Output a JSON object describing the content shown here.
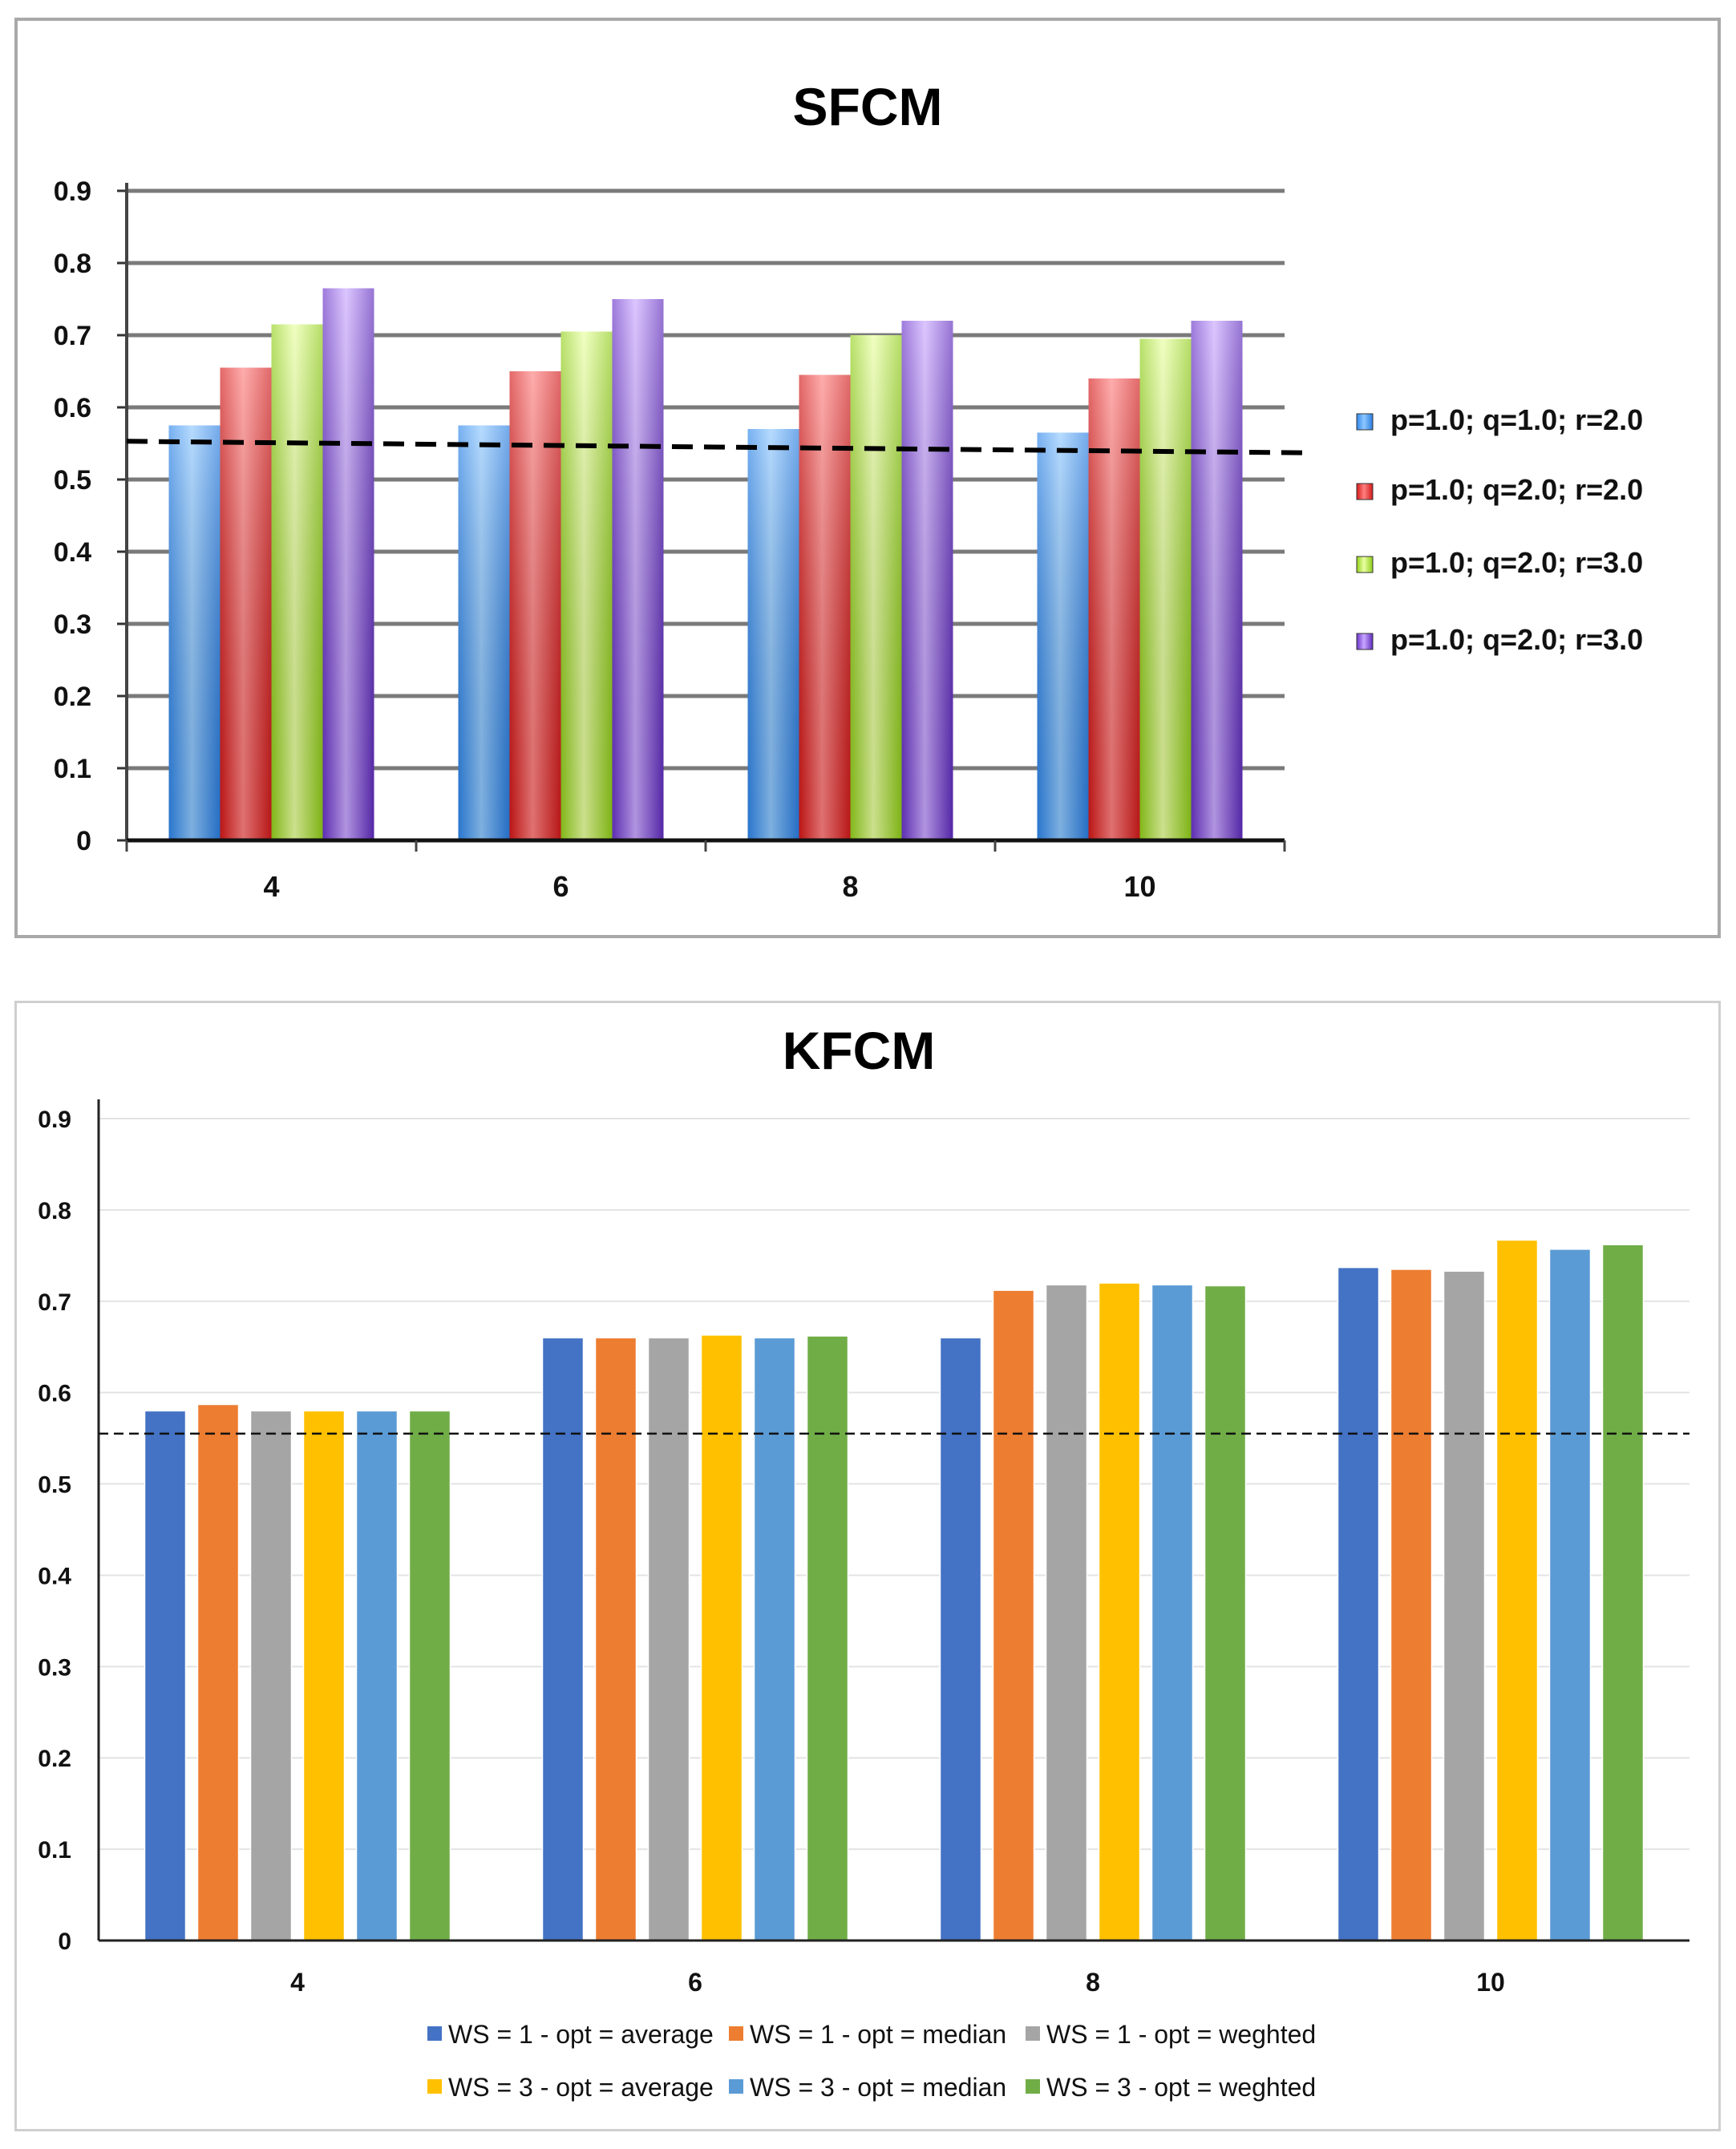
{
  "chart_data": [
    {
      "id": "sfcm",
      "type": "bar",
      "title": "SFCM",
      "xlabel": "",
      "ylabel": "",
      "categories": [
        "4",
        "6",
        "8",
        "10"
      ],
      "ylim": [
        0,
        0.9
      ],
      "yticks": [
        "0",
        "0.1",
        "0.2",
        "0.3",
        "0.4",
        "0.5",
        "0.6",
        "0.7",
        "0.8",
        "0.9"
      ],
      "grid": true,
      "legend_position": "right",
      "reference_line": {
        "style": "dashed",
        "from": 0.553,
        "to": 0.537
      },
      "series": [
        {
          "name": "p=1.0; q=1.0; r=2.0",
          "color": "#5aa9f5",
          "values": [
            0.575,
            0.575,
            0.57,
            0.565
          ]
        },
        {
          "name": "p=1.0; q=2.0; r=2.0",
          "color": "#f04343",
          "values": [
            0.655,
            0.65,
            0.645,
            0.64
          ]
        },
        {
          "name": "p=1.0; q=2.0; r=3.0",
          "color": "#b9e84a",
          "values": [
            0.715,
            0.705,
            0.7,
            0.695
          ]
        },
        {
          "name": "p=1.0; q=2.0; r=3.0",
          "color": "#9b6fe0",
          "values": [
            0.765,
            0.75,
            0.72,
            0.72
          ]
        }
      ]
    },
    {
      "id": "kfcm",
      "type": "bar",
      "title": "KFCM",
      "xlabel": "",
      "ylabel": "",
      "categories": [
        "4",
        "6",
        "8",
        "10"
      ],
      "ylim": [
        0,
        0.9
      ],
      "yticks": [
        "0",
        "0.1",
        "0.2",
        "0.3",
        "0.4",
        "0.5",
        "0.6",
        "0.7",
        "0.8",
        "0.9"
      ],
      "grid": true,
      "legend_position": "bottom",
      "reference_line": {
        "style": "dashed",
        "from": 0.555,
        "to": 0.555
      },
      "series": [
        {
          "name": "WS = 1 - opt = average",
          "color": "#4472c4",
          "values": [
            0.58,
            0.66,
            0.66,
            0.737
          ]
        },
        {
          "name": "WS = 1 - opt = median",
          "color": "#ed7d31",
          "values": [
            0.587,
            0.66,
            0.712,
            0.735
          ]
        },
        {
          "name": "WS = 1 - opt = weghted",
          "color": "#a5a5a5",
          "values": [
            0.58,
            0.66,
            0.718,
            0.733
          ]
        },
        {
          "name": "WS = 3 - opt = average",
          "color": "#ffc000",
          "values": [
            0.58,
            0.663,
            0.72,
            0.767
          ]
        },
        {
          "name": "WS = 3 - opt = median",
          "color": "#5b9bd5",
          "values": [
            0.58,
            0.66,
            0.718,
            0.757
          ]
        },
        {
          "name": "WS = 3 - opt = weghted",
          "color": "#70ad47",
          "values": [
            0.58,
            0.662,
            0.717,
            0.762
          ]
        }
      ]
    }
  ]
}
